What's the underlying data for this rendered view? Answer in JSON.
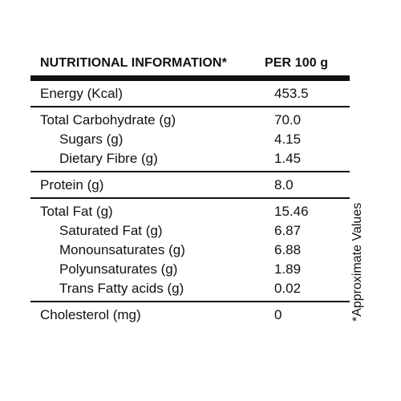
{
  "header": {
    "title": "NUTRITIONAL INFORMATION*",
    "per": "PER 100 g"
  },
  "sections": [
    {
      "rows": [
        {
          "label": "Energy (Kcal)",
          "value": "453.5",
          "sub": false
        }
      ]
    },
    {
      "rows": [
        {
          "label": "Total Carbohydrate  (g)",
          "value": "70.0",
          "sub": false
        },
        {
          "label": "Sugars (g)",
          "value": "4.15",
          "sub": true
        },
        {
          "label": "Dietary Fibre (g)",
          "value": "1.45",
          "sub": true
        }
      ]
    },
    {
      "rows": [
        {
          "label": "Protein (g)",
          "value": "8.0",
          "sub": false
        }
      ]
    },
    {
      "rows": [
        {
          "label": "Total Fat (g)",
          "value": "15.46",
          "sub": false
        },
        {
          "label": "Saturated Fat (g)",
          "value": "6.87",
          "sub": true
        },
        {
          "label": "Monounsaturates (g)",
          "value": "6.88",
          "sub": true
        },
        {
          "label": "Polyunsaturates (g)",
          "value": "1.89",
          "sub": true
        },
        {
          "label": "Trans Fatty acids (g)",
          "value": "0.02",
          "sub": true
        }
      ]
    },
    {
      "rows": [
        {
          "label": "Cholesterol (mg)",
          "value": "0",
          "sub": false
        }
      ]
    }
  ],
  "footnote": "*Approximate Values"
}
